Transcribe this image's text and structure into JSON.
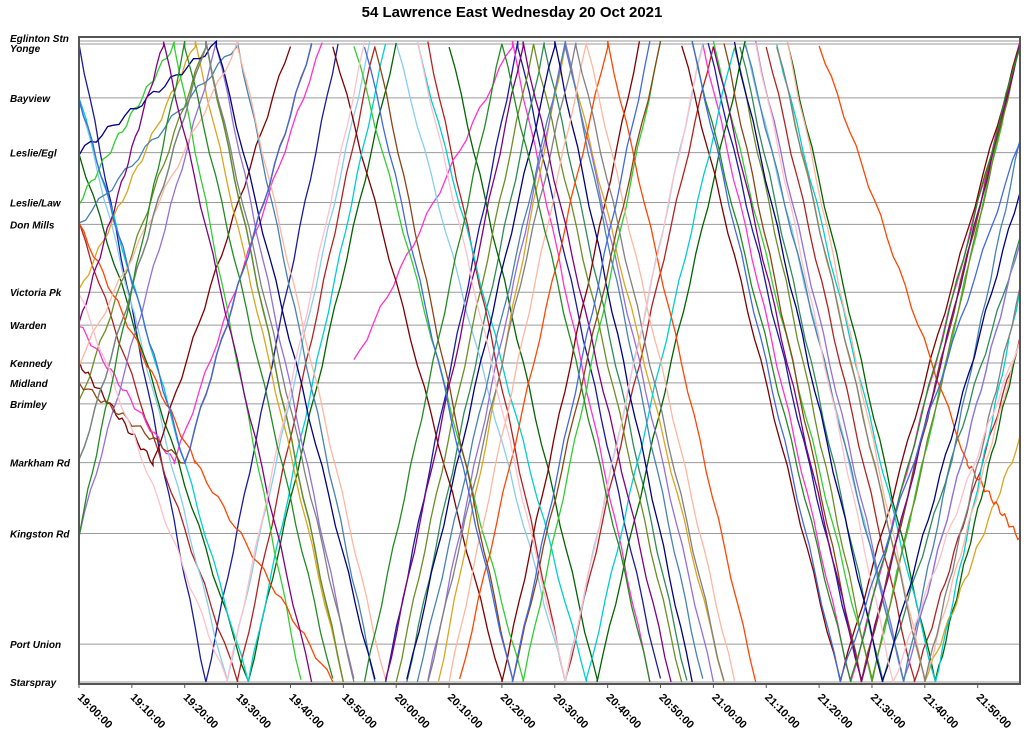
{
  "chart_data": {
    "type": "line",
    "title": "54 Lawrence East Wednesday 20 Oct 2021",
    "xlabel": "",
    "ylabel": "",
    "x_ticks": [
      "19:00:00",
      "19:10:00",
      "19:20:00",
      "19:30:00",
      "19:40:00",
      "19:50:00",
      "20:00:00",
      "20:10:00",
      "20:20:00",
      "20:30:00",
      "20:40:00",
      "20:50:00",
      "21:00:00",
      "21:10:00",
      "21:20:00",
      "21:30:00",
      "21:40:00",
      "21:50:00"
    ],
    "x_range_minutes": [
      0,
      178
    ],
    "stops": [
      "Eglinton Stn",
      "Yonge",
      "Bayview",
      "Leslie/Egl",
      "Leslie/Law",
      "Don Mills",
      "Victoria Pk",
      "Warden",
      "Kennedy",
      "Midland",
      "Brimley",
      "Markham Rd",
      "Kingston Rd",
      "Port Union",
      "Starspray"
    ],
    "stop_distance": [
      0,
      0.3,
      5.7,
      11.2,
      16.2,
      18.4,
      25.2,
      28.5,
      32.3,
      34.3,
      36.4,
      42.3,
      49.4,
      60.5,
      64.3
    ],
    "grid": true,
    "legend": "none",
    "series": [
      {
        "color": "#1a1aa0",
        "trips": [
          {
            "x": [
              0,
              24,
              49
            ],
            "y": [
              0.3,
              64.3,
              0.3
            ]
          },
          {
            "x": [
              58,
              83,
              110
            ],
            "y": [
              64.3,
              0.3,
              64.3
            ]
          },
          {
            "x": [
              119,
              148,
              178
            ],
            "y": [
              0.3,
              64.3,
              0.3
            ]
          }
        ]
      },
      {
        "color": "#2e8b57",
        "trips": [
          {
            "x": [
              0,
              24,
              50
            ],
            "y": [
              42.3,
              0.3,
              64.3
            ]
          },
          {
            "x": [
              62,
              88,
              115
            ],
            "y": [
              64.3,
              0.3,
              64.3
            ]
          },
          {
            "x": [
              125,
              152,
              178
            ],
            "y": [
              0.3,
              64.3,
              20
            ]
          }
        ]
      },
      {
        "color": "#b22222",
        "trips": [
          {
            "x": [
              0,
              30,
              56
            ],
            "y": [
              18.4,
              64.3,
              0.3
            ]
          },
          {
            "x": [
              66,
              92,
              120
            ],
            "y": [
              0.3,
              64.3,
              0.3
            ]
          },
          {
            "x": [
              130,
              158,
              178
            ],
            "y": [
              0.3,
              64.3,
              30
            ]
          }
        ]
      },
      {
        "color": "#ff33cc",
        "trips": [
          {
            "x": [
              0,
              18,
              46
            ],
            "y": [
              28.5,
              42.3,
              0.3
            ]
          },
          {
            "x": [
              52,
              82,
              108
            ],
            "y": [
              32.3,
              0.3,
              64.3
            ]
          },
          {
            "x": [
              118,
              146,
              178
            ],
            "y": [
              0.3,
              64.3,
              0.3
            ]
          }
        ]
      },
      {
        "color": "#87ceeb",
        "trips": [
          {
            "x": [
              0,
              28,
              55
            ],
            "y": [
              5.7,
              64.3,
              0.3
            ]
          },
          {
            "x": [
              60,
              92,
              118
            ],
            "y": [
              0.3,
              64.3,
              0.3
            ]
          },
          {
            "x": [
              126,
              156,
              178
            ],
            "y": [
              0.3,
              64.3,
              20
            ]
          }
        ]
      },
      {
        "color": "#006400",
        "trips": [
          {
            "x": [
              0,
              32,
              60
            ],
            "y": [
              11.2,
              64.3,
              0.3
            ]
          },
          {
            "x": [
              70,
              98,
              126
            ],
            "y": [
              0.3,
              64.3,
              0.3
            ]
          },
          {
            "x": [
              134,
              162,
              178
            ],
            "y": [
              0.3,
              64.3,
              30
            ]
          }
        ]
      },
      {
        "color": "#800000",
        "trips": [
          {
            "x": [
              0,
              14,
              40
            ],
            "y": [
              32.3,
              42.3,
              0.3
            ]
          },
          {
            "x": [
              48,
              80,
              106
            ],
            "y": [
              0.3,
              64.3,
              0.3
            ]
          },
          {
            "x": [
              114,
              144,
              178
            ],
            "y": [
              0.3,
              64.3,
              0.3
            ]
          }
        ]
      },
      {
        "color": "#daa520",
        "trips": [
          {
            "x": [
              0,
              22,
              50
            ],
            "y": [
              25.2,
              0.3,
              64.3
            ]
          },
          {
            "x": [
              68,
              92,
              122
            ],
            "y": [
              64.3,
              0.3,
              64.3
            ]
          },
          {
            "x": [
              132,
              160,
              178
            ],
            "y": [
              0.3,
              64.3,
              40
            ]
          }
        ]
      },
      {
        "color": "#00ced1",
        "trips": [
          {
            "x": [
              0,
              32,
              58
            ],
            "y": [
              5.7,
              64.3,
              0.3
            ]
          },
          {
            "x": [
              64,
              96,
              124
            ],
            "y": [
              0.3,
              64.3,
              0.3
            ]
          },
          {
            "x": [
              132,
              162,
              178
            ],
            "y": [
              0.3,
              64.3,
              25
            ]
          }
        ]
      },
      {
        "color": "#9370db",
        "trips": [
          {
            "x": [
              0,
              26,
              52
            ],
            "y": [
              49.4,
              0.3,
              64.3
            ]
          },
          {
            "x": [
              66,
              92,
              120
            ],
            "y": [
              64.3,
              0.3,
              64.3
            ]
          },
          {
            "x": [
              128,
              156,
              178
            ],
            "y": [
              0.3,
              64.3,
              20
            ]
          }
        ]
      },
      {
        "color": "#32cd32",
        "trips": [
          {
            "x": [
              0,
              18,
              42
            ],
            "y": [
              16.2,
              0.3,
              64.3
            ]
          },
          {
            "x": [
              52,
              84,
              110
            ],
            "y": [
              0.3,
              64.3,
              0.3
            ]
          },
          {
            "x": [
              120,
              150,
              178
            ],
            "y": [
              0.3,
              64.3,
              0.3
            ]
          }
        ]
      },
      {
        "color": "#4682b4",
        "trips": [
          {
            "x": [
              0,
              30,
              56
            ],
            "y": [
              18.4,
              0.3,
              64.3
            ]
          },
          {
            "x": [
              64,
              92,
              118
            ],
            "y": [
              64.3,
              0.3,
              64.3
            ]
          },
          {
            "x": [
              126,
              156,
              178
            ],
            "y": [
              0.3,
              64.3,
              10
            ]
          }
        ]
      },
      {
        "color": "#6b8e23",
        "trips": [
          {
            "x": [
              0,
              24,
              50
            ],
            "y": [
              36.4,
              0.3,
              64.3
            ]
          },
          {
            "x": [
              60,
              86,
              114
            ],
            "y": [
              64.3,
              0.3,
              64.3
            ]
          },
          {
            "x": [
              124,
              150,
              178
            ],
            "y": [
              0.3,
              64.3,
              0.3
            ]
          }
        ]
      },
      {
        "color": "#ff4500",
        "trips": [
          {
            "x": [
              0,
              22,
              48
            ],
            "y": [
              18.4,
              42.3,
              64.3
            ]
          },
          {
            "x": [
              72,
              100,
              128
            ],
            "y": [
              64.3,
              0.3,
              64.3
            ]
          },
          {
            "x": [
              140,
              168,
              178
            ],
            "y": [
              0.3,
              42.3,
              50
            ]
          }
        ]
      },
      {
        "color": "#000080",
        "trips": [
          {
            "x": [
              0,
              26,
              56
            ],
            "y": [
              11.2,
              0.3,
              64.3
            ]
          },
          {
            "x": [
              62,
              90,
              116
            ],
            "y": [
              64.3,
              0.3,
              64.3
            ]
          },
          {
            "x": [
              124,
              152,
              178
            ],
            "y": [
              0.3,
              64.3,
              15
            ]
          }
        ]
      },
      {
        "color": "#ffb6a0",
        "trips": [
          {
            "x": [
              0,
              30,
              58
            ],
            "y": [
              32.3,
              0.3,
              64.3
            ]
          },
          {
            "x": [
              70,
              96,
              124
            ],
            "y": [
              64.3,
              0.3,
              64.3
            ]
          },
          {
            "x": [
              134,
              160,
              178
            ],
            "y": [
              0.3,
              64.3,
              30
            ]
          }
        ]
      },
      {
        "color": "#8b4513",
        "trips": [
          {
            "x": [
              0,
              20,
              44
            ],
            "y": [
              34.3,
              42.3,
              0.3
            ]
          },
          {
            "x": [
              56,
              82,
              110
            ],
            "y": [
              0.3,
              64.3,
              0.3
            ]
          },
          {
            "x": [
              122,
              148,
              178
            ],
            "y": [
              0.3,
              64.3,
              0.3
            ]
          }
        ]
      },
      {
        "color": "#808080",
        "trips": [
          {
            "x": [
              0,
              24,
              52
            ],
            "y": [
              42.3,
              0.3,
              64.3
            ]
          },
          {
            "x": [
              66,
              94,
              122
            ],
            "y": [
              64.3,
              0.3,
              64.3
            ]
          },
          {
            "x": [
              132,
              160,
              178
            ],
            "y": [
              0.3,
              64.3,
              25
            ]
          }
        ]
      },
      {
        "color": "#800080",
        "trips": [
          {
            "x": [
              0,
              16,
              44
            ],
            "y": [
              28.5,
              0.3,
              64.3
            ]
          },
          {
            "x": [
              58,
              84,
              112
            ],
            "y": [
              64.3,
              0.3,
              64.3
            ]
          },
          {
            "x": [
              120,
              148,
              178
            ],
            "y": [
              0.3,
              64.3,
              0.3
            ]
          }
        ]
      },
      {
        "color": "#ffc0cb",
        "trips": [
          {
            "x": [
              0,
              28,
              54
            ],
            "y": [
              25.2,
              64.3,
              0.3
            ]
          },
          {
            "x": [
              64,
              92,
              118
            ],
            "y": [
              0.3,
              64.3,
              0.3
            ]
          },
          {
            "x": [
              128,
              154,
              178
            ],
            "y": [
              0.3,
              64.3,
              30
            ]
          }
        ]
      },
      {
        "color": "#228b22",
        "trips": [
          {
            "x": [
              0,
              20,
              48
            ],
            "y": [
              49.4,
              0.3,
              64.3
            ]
          },
          {
            "x": [
              54,
              80,
              108
            ],
            "y": [
              64.3,
              0.3,
              64.3
            ]
          },
          {
            "x": [
              116,
              146,
              178
            ],
            "y": [
              0.3,
              64.3,
              0.3
            ]
          }
        ]
      },
      {
        "color": "#4169e1",
        "trips": [
          {
            "x": [
              0,
              20,
              44
            ],
            "y": [
              5.7,
              42.3,
              0.3
            ]
          },
          {
            "x": [
              54,
              82,
              108
            ],
            "y": [
              0.3,
              64.3,
              0.3
            ]
          },
          {
            "x": [
              116,
              144,
              178
            ],
            "y": [
              0.3,
              64.3,
              10
            ]
          }
        ]
      }
    ]
  }
}
